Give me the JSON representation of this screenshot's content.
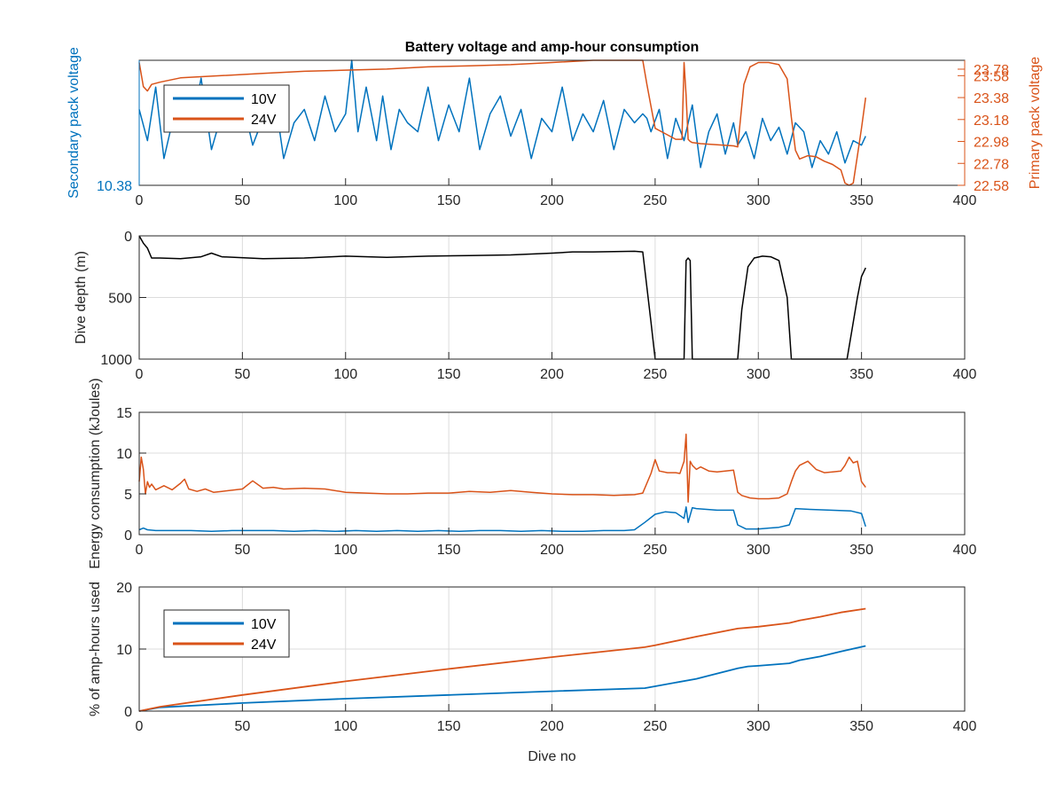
{
  "colors": {
    "blue": "#0072BD",
    "orange": "#D95319",
    "black": "#000000",
    "grid": "#DCDCDC",
    "axis": "#262626"
  },
  "figure_title": "Battery voltage and amp-hour consumption",
  "chart_data": [
    {
      "id": "voltage",
      "type": "line",
      "title": "Battery voltage and amp-hour consumption",
      "xlabel": "",
      "ylabel_left": "Secondary pack voltage",
      "ylabel_right": "Primary pack voltage",
      "xlim": [
        0,
        400
      ],
      "x_ticks": [
        "0",
        "50",
        "100",
        "150",
        "200",
        "250",
        "300",
        "350",
        "400"
      ],
      "y_ticks_left": [
        "10.38"
      ],
      "y_ticks_right": [
        "22.58",
        "22.78",
        "22.98",
        "23.18",
        "23.38",
        "23.58",
        "23.78"
      ],
      "ylim_left": [
        10.38,
        10.66
      ],
      "ylim_right": [
        22.58,
        23.72
      ],
      "legend": {
        "position": "top-left",
        "entries": [
          "10V",
          "24V"
        ]
      },
      "grid": false,
      "series": [
        {
          "name": "10V",
          "axis": "left",
          "x": [
            0,
            4,
            8,
            12,
            16,
            20,
            25,
            30,
            35,
            40,
            45,
            50,
            55,
            60,
            65,
            70,
            75,
            80,
            85,
            90,
            95,
            100,
            103,
            106,
            110,
            115,
            118,
            122,
            126,
            130,
            135,
            140,
            145,
            150,
            155,
            160,
            165,
            170,
            175,
            180,
            185,
            190,
            195,
            200,
            205,
            210,
            215,
            220,
            225,
            230,
            235,
            240,
            244,
            246,
            248,
            252,
            256,
            260,
            264,
            268,
            272,
            276,
            280,
            284,
            288,
            290,
            294,
            298,
            302,
            306,
            310,
            314,
            318,
            322,
            326,
            330,
            334,
            338,
            342,
            346,
            350,
            352
          ],
          "y": [
            10.55,
            10.48,
            10.6,
            10.44,
            10.52,
            10.58,
            10.5,
            10.62,
            10.46,
            10.54,
            10.5,
            10.57,
            10.47,
            10.53,
            10.6,
            10.44,
            10.52,
            10.55,
            10.48,
            10.58,
            10.5,
            10.54,
            10.66,
            10.5,
            10.6,
            10.48,
            10.58,
            10.46,
            10.55,
            10.52,
            10.5,
            10.6,
            10.48,
            10.56,
            10.5,
            10.62,
            10.46,
            10.54,
            10.58,
            10.49,
            10.55,
            10.44,
            10.53,
            10.5,
            10.6,
            10.48,
            10.54,
            10.5,
            10.57,
            10.46,
            10.55,
            10.52,
            10.54,
            10.53,
            10.5,
            10.55,
            10.44,
            10.53,
            10.48,
            10.56,
            10.42,
            10.5,
            10.54,
            10.45,
            10.52,
            10.47,
            10.5,
            10.44,
            10.53,
            10.48,
            10.51,
            10.45,
            10.52,
            10.5,
            10.42,
            10.48,
            10.45,
            10.5,
            10.43,
            10.48,
            10.47,
            10.49
          ]
        },
        {
          "name": "24V",
          "axis": "right",
          "x": [
            0,
            2,
            4,
            6,
            10,
            20,
            40,
            60,
            80,
            100,
            120,
            140,
            160,
            180,
            200,
            220,
            240,
            244,
            246,
            248,
            250,
            255,
            260,
            263,
            264,
            265,
            266,
            267,
            268,
            272,
            280,
            288,
            290,
            293,
            296,
            300,
            305,
            310,
            314,
            316,
            318,
            320,
            324,
            328,
            332,
            336,
            340,
            342,
            344,
            346,
            348,
            350,
            352
          ],
          "y": [
            23.7,
            23.48,
            23.44,
            23.5,
            23.52,
            23.56,
            23.58,
            23.6,
            23.62,
            23.63,
            23.64,
            23.66,
            23.67,
            23.68,
            23.7,
            23.72,
            23.74,
            23.74,
            23.5,
            23.3,
            23.1,
            23.05,
            23.0,
            23.0,
            23.7,
            23.4,
            23.0,
            22.98,
            22.97,
            22.96,
            22.95,
            22.94,
            22.93,
            23.5,
            23.66,
            23.7,
            23.7,
            23.68,
            23.55,
            23.2,
            22.9,
            22.82,
            22.85,
            22.84,
            22.8,
            22.77,
            22.72,
            22.6,
            22.58,
            22.6,
            22.85,
            23.1,
            23.38
          ]
        }
      ]
    },
    {
      "id": "depth",
      "type": "line",
      "xlabel": "",
      "ylabel": "Dive depth (m)",
      "xlim": [
        0,
        400
      ],
      "ylim": [
        0,
        1000
      ],
      "y_reversed": true,
      "x_ticks": [
        "0",
        "50",
        "100",
        "150",
        "200",
        "250",
        "300",
        "350",
        "400"
      ],
      "y_ticks": [
        "0",
        "500",
        "1000"
      ],
      "grid": true,
      "series": [
        {
          "name": "",
          "x": [
            0,
            2,
            4,
            6,
            10,
            20,
            30,
            35,
            40,
            60,
            80,
            100,
            120,
            140,
            160,
            180,
            200,
            210,
            220,
            240,
            244,
            248,
            250,
            258,
            262,
            264,
            265,
            266,
            267,
            268,
            270,
            280,
            288,
            290,
            292,
            295,
            298,
            302,
            306,
            310,
            314,
            316,
            320,
            330,
            340,
            343,
            345,
            348,
            350,
            352
          ],
          "y": [
            0,
            60,
            100,
            180,
            180,
            185,
            170,
            140,
            170,
            185,
            180,
            165,
            175,
            165,
            160,
            155,
            140,
            130,
            130,
            125,
            130,
            700,
            1000,
            1000,
            1000,
            1000,
            200,
            180,
            200,
            1000,
            1000,
            1000,
            1000,
            1000,
            600,
            250,
            180,
            165,
            170,
            200,
            500,
            1000,
            1000,
            1000,
            1000,
            1000,
            800,
            500,
            330,
            260
          ]
        }
      ]
    },
    {
      "id": "energy",
      "type": "line",
      "xlabel": "",
      "ylabel": "Energy consumption (kJoules)",
      "xlim": [
        0,
        400
      ],
      "ylim": [
        0,
        15
      ],
      "x_ticks": [
        "0",
        "50",
        "100",
        "150",
        "200",
        "250",
        "300",
        "350",
        "400"
      ],
      "y_ticks": [
        "0",
        "5",
        "10",
        "15"
      ],
      "grid": true,
      "series": [
        {
          "name": "10V",
          "x": [
            0,
            2,
            4,
            8,
            15,
            25,
            35,
            45,
            55,
            65,
            75,
            85,
            95,
            105,
            115,
            125,
            135,
            145,
            155,
            165,
            175,
            185,
            195,
            205,
            215,
            225,
            235,
            240,
            245,
            250,
            255,
            260,
            264,
            265,
            266,
            268,
            270,
            275,
            280,
            288,
            290,
            294,
            300,
            305,
            310,
            315,
            318,
            325,
            335,
            345,
            350,
            352
          ],
          "y": [
            0.6,
            0.8,
            0.6,
            0.5,
            0.5,
            0.5,
            0.4,
            0.5,
            0.5,
            0.5,
            0.4,
            0.5,
            0.4,
            0.5,
            0.4,
            0.5,
            0.4,
            0.5,
            0.4,
            0.5,
            0.5,
            0.4,
            0.5,
            0.4,
            0.4,
            0.5,
            0.5,
            0.6,
            1.5,
            2.5,
            2.8,
            2.7,
            2.0,
            3.4,
            1.5,
            3.3,
            3.2,
            3.1,
            3.0,
            3.0,
            1.2,
            0.7,
            0.7,
            0.8,
            0.9,
            1.2,
            3.2,
            3.1,
            3.0,
            2.9,
            2.6,
            1.0
          ]
        },
        {
          "name": "24V",
          "x": [
            0,
            1,
            2,
            3,
            4,
            5,
            6,
            8,
            12,
            16,
            20,
            22,
            24,
            28,
            32,
            36,
            40,
            50,
            55,
            60,
            65,
            70,
            80,
            90,
            100,
            110,
            120,
            130,
            140,
            150,
            160,
            170,
            180,
            190,
            200,
            210,
            220,
            230,
            240,
            244,
            248,
            250,
            252,
            256,
            260,
            262,
            264,
            265,
            266,
            267,
            268,
            270,
            272,
            276,
            280,
            288,
            290,
            292,
            296,
            300,
            305,
            310,
            314,
            316,
            318,
            320,
            324,
            328,
            332,
            336,
            340,
            342,
            344,
            346,
            348,
            350,
            352
          ],
          "y": [
            6.5,
            9.5,
            8.0,
            5.0,
            6.5,
            5.8,
            6.2,
            5.5,
            6.0,
            5.5,
            6.3,
            6.8,
            5.6,
            5.3,
            5.6,
            5.2,
            5.3,
            5.6,
            6.6,
            5.7,
            5.8,
            5.6,
            5.7,
            5.6,
            5.2,
            5.1,
            5.0,
            5.0,
            5.1,
            5.1,
            5.3,
            5.2,
            5.4,
            5.2,
            5.0,
            4.9,
            4.9,
            4.8,
            4.9,
            5.1,
            7.5,
            9.2,
            7.8,
            7.6,
            7.6,
            7.5,
            9.0,
            12.3,
            4.0,
            9.0,
            8.5,
            8.0,
            8.3,
            7.8,
            7.7,
            7.9,
            5.2,
            4.8,
            4.5,
            4.4,
            4.4,
            4.5,
            5.0,
            6.5,
            7.8,
            8.5,
            9.0,
            8.0,
            7.6,
            7.7,
            7.8,
            8.5,
            9.5,
            8.8,
            9.0,
            6.5,
            5.8
          ]
        }
      ]
    },
    {
      "id": "amphours",
      "type": "line",
      "xlabel": "Dive no",
      "ylabel": "% of amp-hours used",
      "xlim": [
        0,
        400
      ],
      "ylim": [
        0,
        20
      ],
      "x_ticks": [
        "0",
        "50",
        "100",
        "150",
        "200",
        "250",
        "300",
        "350",
        "400"
      ],
      "y_ticks": [
        "0",
        "10",
        "20"
      ],
      "grid": true,
      "legend": {
        "position": "top-left",
        "entries": [
          "10V",
          "24V"
        ]
      },
      "series": [
        {
          "name": "10V",
          "x": [
            0,
            10,
            50,
            100,
            150,
            200,
            245,
            250,
            270,
            290,
            295,
            300,
            315,
            320,
            330,
            340,
            352
          ],
          "y": [
            0,
            0.6,
            1.3,
            2.0,
            2.6,
            3.2,
            3.7,
            4.0,
            5.2,
            6.9,
            7.2,
            7.3,
            7.7,
            8.2,
            8.8,
            9.6,
            10.5
          ]
        },
        {
          "name": "24V",
          "x": [
            0,
            10,
            50,
            100,
            150,
            200,
            245,
            250,
            270,
            290,
            300,
            315,
            320,
            330,
            340,
            352
          ],
          "y": [
            0,
            0.7,
            2.6,
            4.8,
            6.8,
            8.7,
            10.3,
            10.6,
            12.0,
            13.3,
            13.6,
            14.2,
            14.6,
            15.2,
            15.9,
            16.5
          ]
        }
      ]
    }
  ]
}
